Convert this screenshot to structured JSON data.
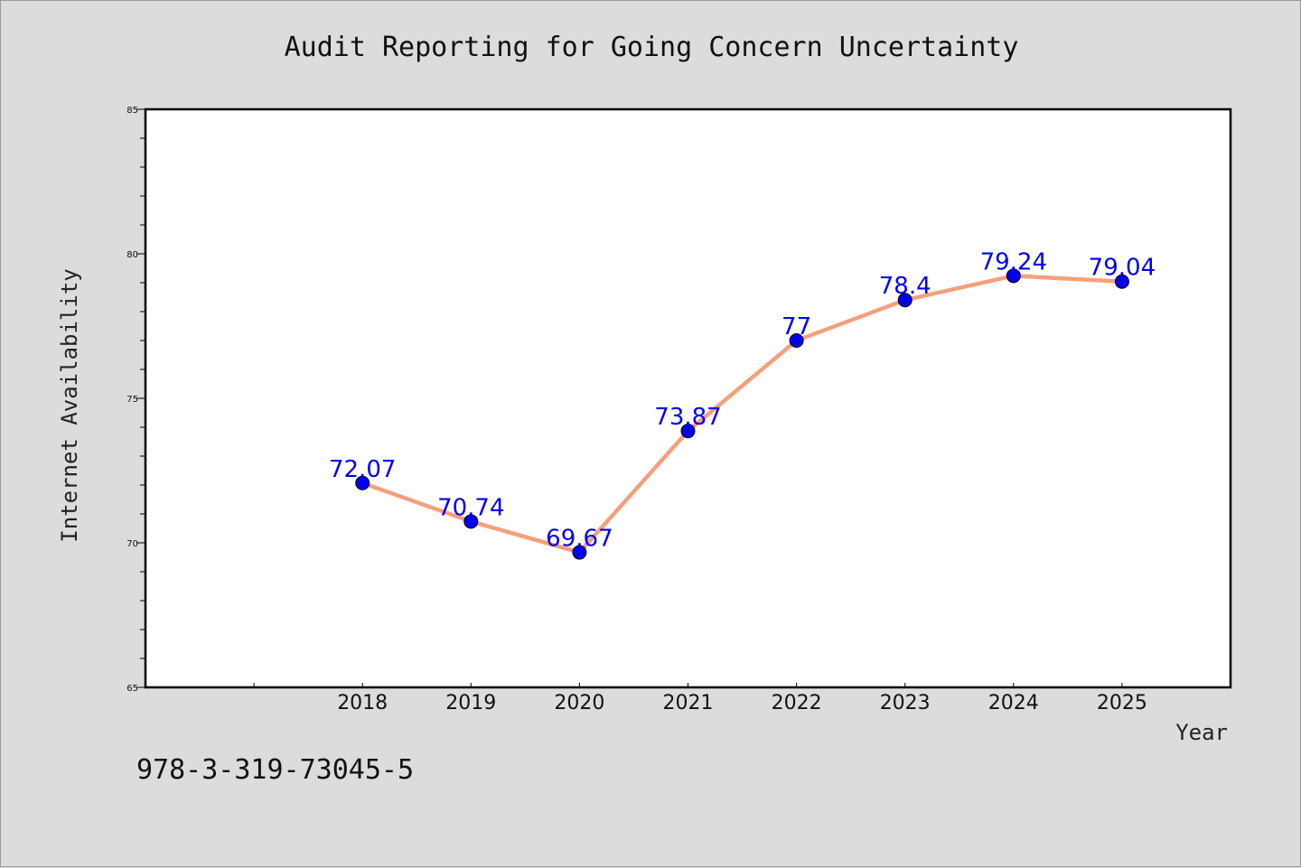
{
  "chart_data": {
    "type": "line",
    "title": "Audit Reporting for Going Concern Uncertainty",
    "xlabel": "Year",
    "ylabel": "Internet Availability",
    "x": [
      2018,
      2019,
      2020,
      2021,
      2022,
      2023,
      2024,
      2025
    ],
    "xlim": [
      2016,
      2026
    ],
    "ylim": [
      65,
      85
    ],
    "yticks": [
      65,
      70,
      75,
      80,
      85
    ],
    "y_minor_step": 1,
    "series": [
      {
        "values": [
          72.07,
          70.74,
          69.67,
          73.87,
          77,
          78.4,
          79.24,
          79.04
        ],
        "labels": [
          "72.07",
          "70.74",
          "69.67",
          "73.87",
          "77",
          "78.4",
          "79.24",
          "79.04"
        ],
        "line_color": "#f4a07c",
        "marker_color": "#0000ee"
      }
    ],
    "grid": false,
    "legend": "none"
  },
  "footer": {
    "code": "978-3-319-73045-5"
  },
  "colors": {
    "background": "#dcdcdc",
    "plot_background": "#ffffff",
    "data_label": "#0000ee"
  }
}
